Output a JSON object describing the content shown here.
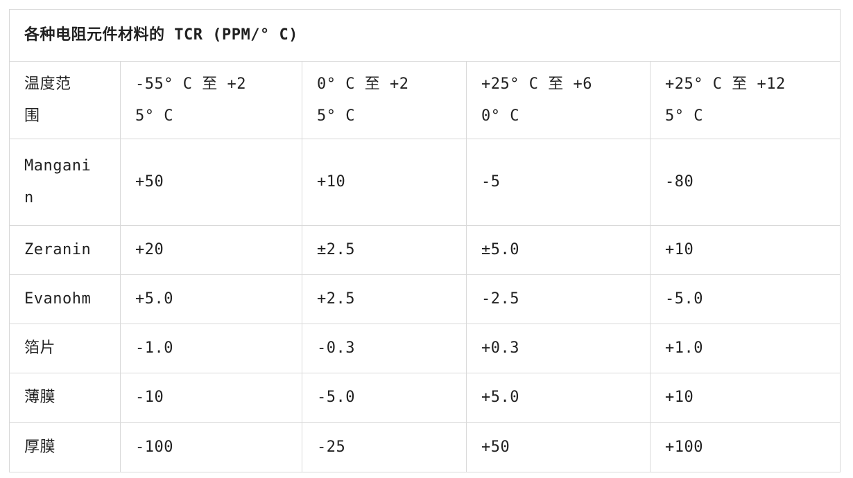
{
  "colors": {
    "border": "#d9d9d9",
    "text": "#212121",
    "background": "#ffffff"
  },
  "table": {
    "title": "各种电阻元件材料的 TCR (PPM/° C)",
    "header": [
      "温度范\n围",
      "-55° C 至 +2\n5° C",
      "0° C 至 +2\n5° C",
      "+25° C 至 +6\n0° C",
      "+25° C 至 +12\n5° C"
    ],
    "rows": [
      {
        "material": "Mangani\nn",
        "values": [
          "+50",
          "+10",
          "-5",
          "-80"
        ]
      },
      {
        "material": "Zeranin",
        "values": [
          "+20",
          "±2.5",
          "±5.0",
          "+10"
        ]
      },
      {
        "material": "Evanohm",
        "values": [
          "+5.0",
          "+2.5",
          "-2.5",
          "-5.0"
        ]
      },
      {
        "material": "箔片",
        "values": [
          "-1.0",
          "-0.3",
          "+0.3",
          "+1.0"
        ]
      },
      {
        "material": "薄膜",
        "values": [
          "-10",
          "-5.0",
          "+5.0",
          "+10"
        ]
      },
      {
        "material": "厚膜",
        "values": [
          "-100",
          "-25",
          "+50",
          "+100"
        ]
      }
    ]
  }
}
